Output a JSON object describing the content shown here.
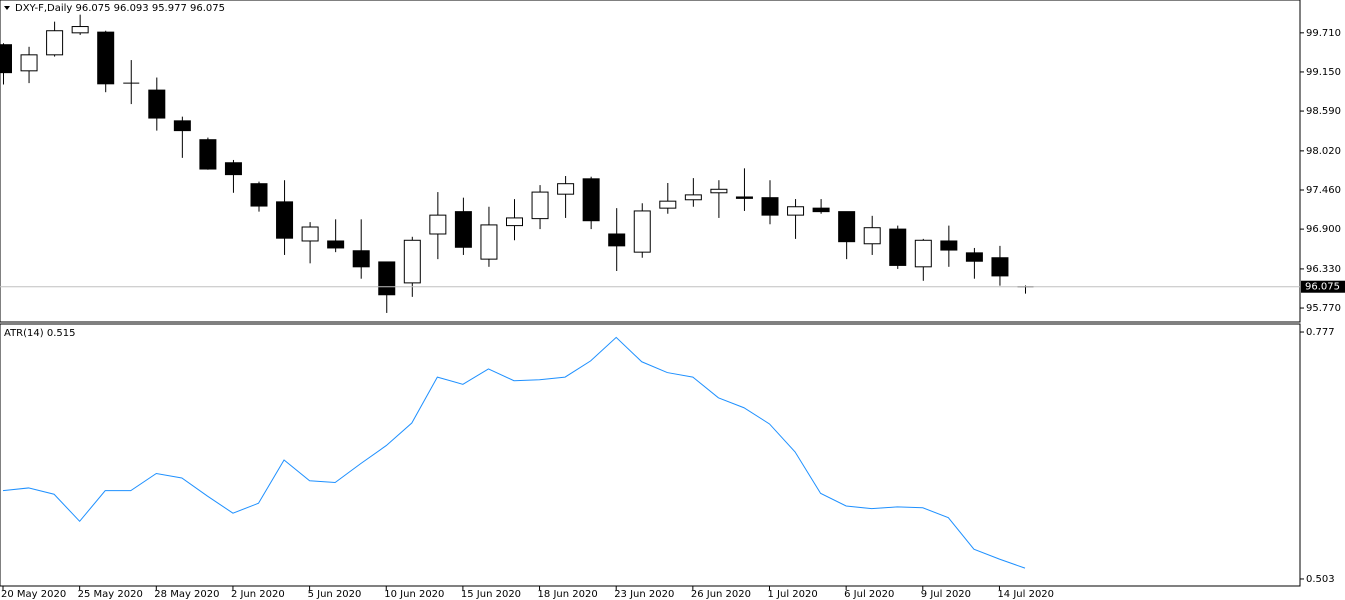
{
  "chart_data": [
    {
      "type": "candlestick",
      "title": "DXY-F,Daily  96.075 96.093 95.977 96.075",
      "categories": [
        "20 May 2020",
        null,
        null,
        "25 May 2020",
        null,
        null,
        "28 May 2020",
        null,
        null,
        "2 Jun 2020",
        null,
        null,
        "5 Jun 2020",
        null,
        null,
        "10 Jun 2020",
        null,
        null,
        "15 Jun 2020",
        null,
        null,
        "18 Jun 2020",
        null,
        null,
        "23 Jun 2020",
        null,
        null,
        "26 Jun 2020",
        null,
        null,
        "1 Jul 2020",
        null,
        null,
        "6 Jul 2020",
        null,
        null,
        "9 Jul 2020",
        null,
        null,
        "14 Jul 2020",
        null
      ],
      "open": [
        99.54,
        99.166,
        99.395,
        99.71,
        99.72,
        98.99,
        98.89,
        98.45,
        98.18,
        97.85,
        97.55,
        97.29,
        96.73,
        96.73,
        96.59,
        96.43,
        96.13,
        96.83,
        97.15,
        96.47,
        96.95,
        97.05,
        97.4,
        97.62,
        96.83,
        96.57,
        97.2,
        97.32,
        97.42,
        97.36,
        97.35,
        97.1,
        97.2,
        97.15,
        96.69,
        96.9,
        96.36,
        96.73,
        96.56,
        96.49,
        96.075
      ],
      "high": [
        99.56,
        99.51,
        99.87,
        99.97,
        99.74,
        99.32,
        99.07,
        98.51,
        98.21,
        97.89,
        97.58,
        97.6,
        97.0,
        97.04,
        97.04,
        96.43,
        96.79,
        97.43,
        97.35,
        97.22,
        97.33,
        97.53,
        97.66,
        97.65,
        97.2,
        97.27,
        97.56,
        97.63,
        97.6,
        97.77,
        97.6,
        97.33,
        97.33,
        97.15,
        97.09,
        96.95,
        96.76,
        96.95,
        96.63,
        96.66,
        96.093
      ],
      "low": [
        98.97,
        98.99,
        99.37,
        99.68,
        98.86,
        98.69,
        98.31,
        97.92,
        97.75,
        97.42,
        97.15,
        96.53,
        96.41,
        96.57,
        96.19,
        95.7,
        95.93,
        96.47,
        96.53,
        96.36,
        96.74,
        96.9,
        97.06,
        96.9,
        96.3,
        96.49,
        97.12,
        97.22,
        97.06,
        97.16,
        96.97,
        96.76,
        97.12,
        96.47,
        96.53,
        96.33,
        96.16,
        96.36,
        96.19,
        96.09,
        95.977
      ],
      "close": [
        99.14,
        99.395,
        99.74,
        99.8,
        98.98,
        98.98,
        98.49,
        98.31,
        97.76,
        97.68,
        97.23,
        96.77,
        96.93,
        96.63,
        96.36,
        95.96,
        96.74,
        97.1,
        96.64,
        96.96,
        97.06,
        97.43,
        97.55,
        97.02,
        96.66,
        97.16,
        97.3,
        97.39,
        97.47,
        97.34,
        97.1,
        97.22,
        97.15,
        96.72,
        96.92,
        96.38,
        96.74,
        96.6,
        96.44,
        96.23,
        96.075
      ],
      "up_color": "#ffffff",
      "down_color": "#000000",
      "last_price": {
        "value": 96.075,
        "label": "96.075"
      },
      "ylim": [
        95.57,
        100.18
      ],
      "yticks": [
        {
          "value": 99.71,
          "label": "99.710"
        },
        {
          "value": 99.15,
          "label": "99.150"
        },
        {
          "value": 98.59,
          "label": "98.590"
        },
        {
          "value": 98.02,
          "label": "98.020"
        },
        {
          "value": 97.46,
          "label": "97.460"
        },
        {
          "value": 96.9,
          "label": "96.900"
        },
        {
          "value": 96.33,
          "label": "96.330"
        },
        {
          "value": 95.77,
          "label": "95.770"
        }
      ]
    },
    {
      "type": "line",
      "title": "ATR(14) 0.515",
      "color": "#1e90ff",
      "values": [
        0.601,
        0.604,
        0.597,
        0.567,
        0.601,
        0.601,
        0.62,
        0.615,
        0.595,
        0.576,
        0.587,
        0.635,
        0.612,
        0.61,
        0.631,
        0.651,
        0.676,
        0.727,
        0.719,
        0.736,
        0.723,
        0.724,
        0.727,
        0.745,
        0.771,
        0.744,
        0.732,
        0.727,
        0.704,
        0.693,
        0.675,
        0.644,
        0.598,
        0.584,
        0.581,
        0.583,
        0.582,
        0.571,
        0.536,
        0.525,
        0.515
      ],
      "ylim": [
        0.4952,
        0.7859
      ],
      "yticks": [
        0.777,
        0.503
      ]
    }
  ]
}
